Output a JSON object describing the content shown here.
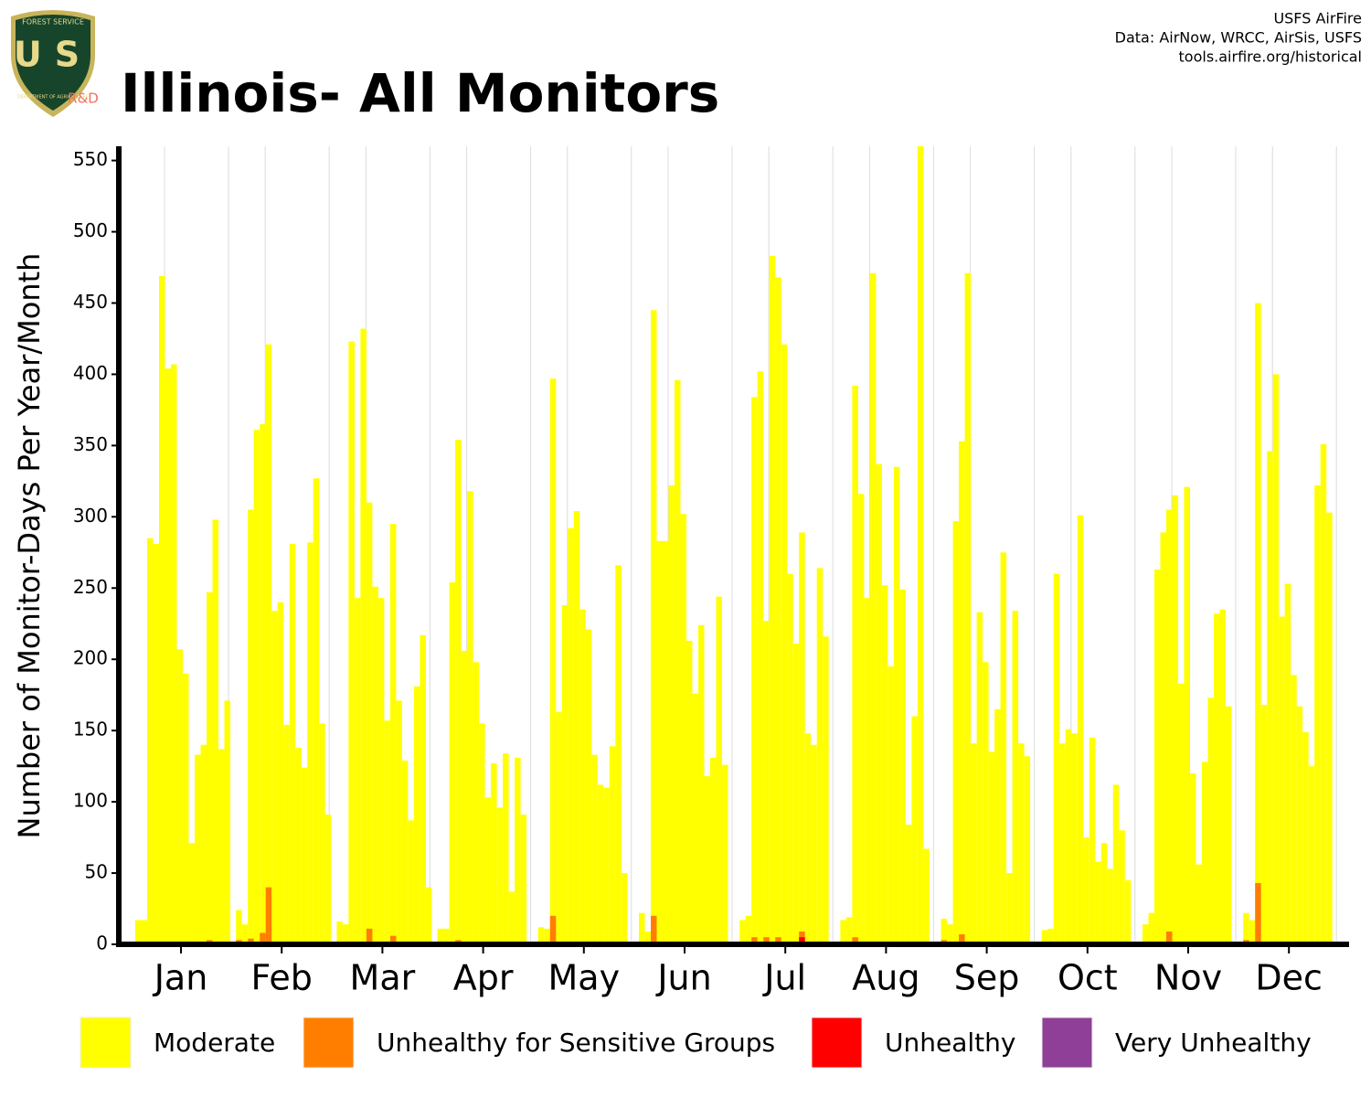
{
  "chart_data": {
    "type": "bar",
    "title": "Illinois- All Monitors",
    "credits": [
      "USFS AirFire",
      "Data: AirNow, WRCC, AirSis, USFS",
      "tools.airfire.org/historical"
    ],
    "logo": {
      "top": "FOREST SERVICE",
      "center": "US",
      "bottom": "DEPARTMENT OF AGRICULTURE",
      "unit": "R&D"
    },
    "ylabel": "Number of Monitor-Days Per Year/Month",
    "categories": [
      "Jan",
      "Feb",
      "Mar",
      "Apr",
      "May",
      "Jun",
      "Jul",
      "Aug",
      "Sep",
      "Oct",
      "Nov",
      "Dec"
    ],
    "ylim": [
      0,
      560
    ],
    "yticks": [
      0,
      50,
      100,
      150,
      200,
      250,
      300,
      350,
      400,
      450,
      500,
      550
    ],
    "grid": true,
    "series": [
      {
        "name": "Moderate",
        "color": "#ffff00",
        "values": [
          [
            17,
            17,
            285,
            281,
            469,
            404,
            407,
            207,
            190,
            71,
            133,
            140,
            247,
            298,
            137,
            171
          ],
          [
            24,
            14,
            305,
            361,
            365,
            421,
            234,
            240,
            154,
            281,
            138,
            124,
            282,
            327,
            155,
            91
          ],
          [
            16,
            14,
            423,
            243,
            432,
            310,
            251,
            243,
            157,
            295,
            171,
            129,
            87,
            181,
            217,
            40
          ],
          [
            11,
            11,
            254,
            354,
            206,
            318,
            198,
            155,
            103,
            127,
            96,
            134,
            37,
            131,
            91
          ],
          [
            12,
            11,
            397,
            163,
            238,
            292,
            304,
            235,
            221,
            133,
            112,
            110,
            139,
            266,
            50
          ],
          [
            22,
            9,
            445,
            283,
            283,
            322,
            396,
            302,
            213,
            176,
            224,
            118,
            131,
            244,
            126
          ],
          [
            17,
            20,
            384,
            402,
            227,
            483,
            468,
            421,
            260,
            211,
            289,
            148,
            140,
            264,
            216
          ],
          [
            17,
            19,
            392,
            316,
            243,
            471,
            337,
            252,
            195,
            335,
            249,
            84,
            160,
            560,
            67
          ],
          [
            18,
            14,
            297,
            353,
            471,
            141,
            233,
            198,
            135,
            165,
            275,
            50,
            234,
            141,
            132
          ],
          [
            10,
            11,
            260,
            141,
            151,
            148,
            301,
            75,
            145,
            58,
            71,
            53,
            112,
            80,
            45
          ],
          [
            14,
            22,
            263,
            289,
            305,
            315,
            183,
            321,
            120,
            56,
            128,
            173,
            232,
            235,
            167
          ],
          [
            22,
            17,
            450,
            168,
            346,
            400,
            230,
            253,
            189,
            167,
            149,
            125,
            322,
            351,
            303
          ]
        ]
      },
      {
        "name": "Unhealthy for Sensitive Groups",
        "color": "#ff7e00",
        "values": [
          [
            0,
            0,
            0,
            0,
            0,
            0,
            0,
            0,
            0,
            0,
            0,
            0,
            3,
            0,
            0,
            0
          ],
          [
            3,
            0,
            4,
            0,
            8,
            40,
            0,
            0,
            0,
            0,
            0,
            0,
            0,
            0,
            0,
            0
          ],
          [
            0,
            0,
            0,
            0,
            0,
            11,
            0,
            0,
            0,
            6,
            0,
            0,
            0,
            0,
            0,
            0
          ],
          [
            0,
            0,
            0,
            3,
            0,
            0,
            0,
            0,
            0,
            0,
            0,
            0,
            0,
            0,
            0
          ],
          [
            0,
            0,
            20,
            0,
            0,
            0,
            0,
            0,
            0,
            0,
            0,
            0,
            0,
            0,
            0
          ],
          [
            0,
            0,
            20,
            0,
            0,
            0,
            0,
            0,
            0,
            0,
            0,
            0,
            0,
            0,
            0
          ],
          [
            0,
            0,
            5,
            0,
            5,
            0,
            5,
            0,
            0,
            0,
            9,
            0,
            0,
            0,
            0
          ],
          [
            0,
            0,
            5,
            0,
            0,
            0,
            0,
            0,
            0,
            0,
            0,
            0,
            0,
            0,
            0
          ],
          [
            3,
            0,
            0,
            7,
            0,
            0,
            0,
            0,
            0,
            0,
            0,
            0,
            0,
            0,
            0
          ],
          [
            0,
            0,
            0,
            0,
            0,
            0,
            0,
            0,
            0,
            0,
            0,
            0,
            0,
            0,
            0
          ],
          [
            0,
            0,
            0,
            0,
            9,
            0,
            0,
            0,
            0,
            0,
            0,
            0,
            0,
            0,
            0
          ],
          [
            3,
            0,
            43,
            0,
            0,
            0,
            0,
            0,
            0,
            0,
            0,
            0,
            0,
            0,
            0
          ]
        ]
      },
      {
        "name": "Unhealthy",
        "color": "#ff0000",
        "values": [
          [
            0,
            0,
            0,
            0,
            0,
            0,
            0,
            0,
            0,
            0,
            0,
            0,
            0,
            0,
            0,
            0
          ],
          [
            0,
            0,
            0,
            0,
            0,
            0,
            0,
            0,
            0,
            0,
            0,
            0,
            0,
            0,
            0,
            0
          ],
          [
            0,
            0,
            0,
            0,
            0,
            0,
            0,
            0,
            0,
            0,
            0,
            0,
            0,
            0,
            0,
            0
          ],
          [
            0,
            0,
            0,
            0,
            0,
            0,
            0,
            0,
            0,
            0,
            0,
            0,
            0,
            0,
            0
          ],
          [
            0,
            0,
            0,
            0,
            0,
            0,
            0,
            0,
            0,
            0,
            0,
            0,
            0,
            0,
            0
          ],
          [
            0,
            0,
            0,
            0,
            0,
            0,
            0,
            0,
            0,
            0,
            0,
            0,
            0,
            0,
            0
          ],
          [
            0,
            0,
            0,
            0,
            0,
            0,
            0,
            0,
            0,
            0,
            5,
            0,
            0,
            0,
            0
          ],
          [
            0,
            0,
            0,
            0,
            0,
            0,
            0,
            0,
            0,
            0,
            0,
            0,
            0,
            0,
            0
          ],
          [
            0,
            0,
            0,
            0,
            0,
            0,
            0,
            0,
            0,
            0,
            0,
            0,
            0,
            0,
            0
          ],
          [
            0,
            0,
            0,
            0,
            0,
            0,
            0,
            0,
            0,
            0,
            0,
            0,
            0,
            0,
            0
          ],
          [
            0,
            0,
            0,
            0,
            0,
            0,
            0,
            0,
            0,
            0,
            0,
            0,
            0,
            0,
            0
          ],
          [
            0,
            0,
            0,
            0,
            0,
            0,
            0,
            0,
            0,
            0,
            0,
            0,
            0,
            0,
            0
          ]
        ]
      },
      {
        "name": "Very Unhealthy",
        "color": "#8f3f97",
        "values": [
          [
            0,
            0,
            0,
            0,
            0,
            0,
            0,
            0,
            0,
            0,
            0,
            0,
            0,
            0,
            0,
            0
          ],
          [
            0,
            0,
            0,
            0,
            0,
            0,
            0,
            0,
            0,
            0,
            0,
            0,
            0,
            0,
            0,
            0
          ],
          [
            0,
            0,
            0,
            0,
            0,
            0,
            0,
            0,
            0,
            0,
            0,
            0,
            0,
            0,
            0,
            0
          ],
          [
            0,
            0,
            0,
            0,
            0,
            0,
            0,
            0,
            0,
            0,
            0,
            0,
            0,
            0,
            0
          ],
          [
            0,
            0,
            0,
            0,
            0,
            0,
            0,
            0,
            0,
            0,
            0,
            0,
            0,
            0,
            0
          ],
          [
            0,
            0,
            0,
            0,
            0,
            0,
            0,
            0,
            0,
            0,
            0,
            0,
            0,
            0,
            0
          ],
          [
            0,
            0,
            0,
            0,
            0,
            0,
            0,
            0,
            0,
            0,
            0,
            0,
            0,
            0,
            0
          ],
          [
            0,
            0,
            0,
            0,
            0,
            0,
            0,
            0,
            0,
            0,
            0,
            0,
            0,
            0,
            0
          ],
          [
            0,
            0,
            0,
            0,
            0,
            0,
            0,
            0,
            0,
            0,
            0,
            0,
            0,
            0,
            0
          ],
          [
            0,
            0,
            0,
            0,
            0,
            0,
            0,
            0,
            0,
            0,
            0,
            0,
            0,
            0,
            0
          ],
          [
            0,
            0,
            0,
            0,
            0,
            0,
            0,
            0,
            0,
            0,
            0,
            0,
            0,
            0,
            0
          ],
          [
            0,
            0,
            0,
            0,
            0,
            0,
            0,
            0,
            0,
            0,
            0,
            0,
            0,
            0,
            0
          ]
        ]
      }
    ]
  }
}
